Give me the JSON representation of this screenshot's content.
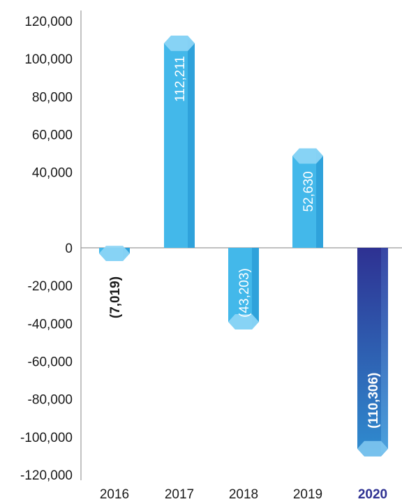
{
  "chart_data": {
    "type": "bar",
    "title": "",
    "xlabel": "",
    "ylabel": "",
    "categories": [
      "2016",
      "2017",
      "2018",
      "2019",
      "2020"
    ],
    "values": [
      -7019,
      112211,
      -43203,
      52630,
      -110306
    ],
    "data_labels": [
      "(7,019)",
      "112,211",
      "(43,203)",
      "52,630",
      "(110,306)"
    ],
    "highlight_category": "2020",
    "ylim": [
      -120000,
      120000
    ],
    "yticks": [
      120000,
      100000,
      80000,
      60000,
      40000,
      20000,
      0,
      -20000,
      -40000,
      -60000,
      -80000,
      -100000,
      -120000
    ],
    "ytick_labels": [
      "120,000",
      "100,000",
      "80,000",
      "60,000",
      "40,000",
      "",
      "0",
      "-20,000",
      "-40,000",
      "-60,000",
      "-80,000",
      "-100,000",
      "-120,000"
    ],
    "grid": false,
    "legend": "none",
    "colors": {
      "bar": "#43b8ea",
      "bar_light": "#8fd6f6",
      "bar_dark": "#2b9ed8",
      "highlight_top": "#2e3192",
      "highlight_bottom": "#2f8dd0",
      "axis": "#9a9a9a",
      "highlight_text": "#2e3192"
    }
  }
}
